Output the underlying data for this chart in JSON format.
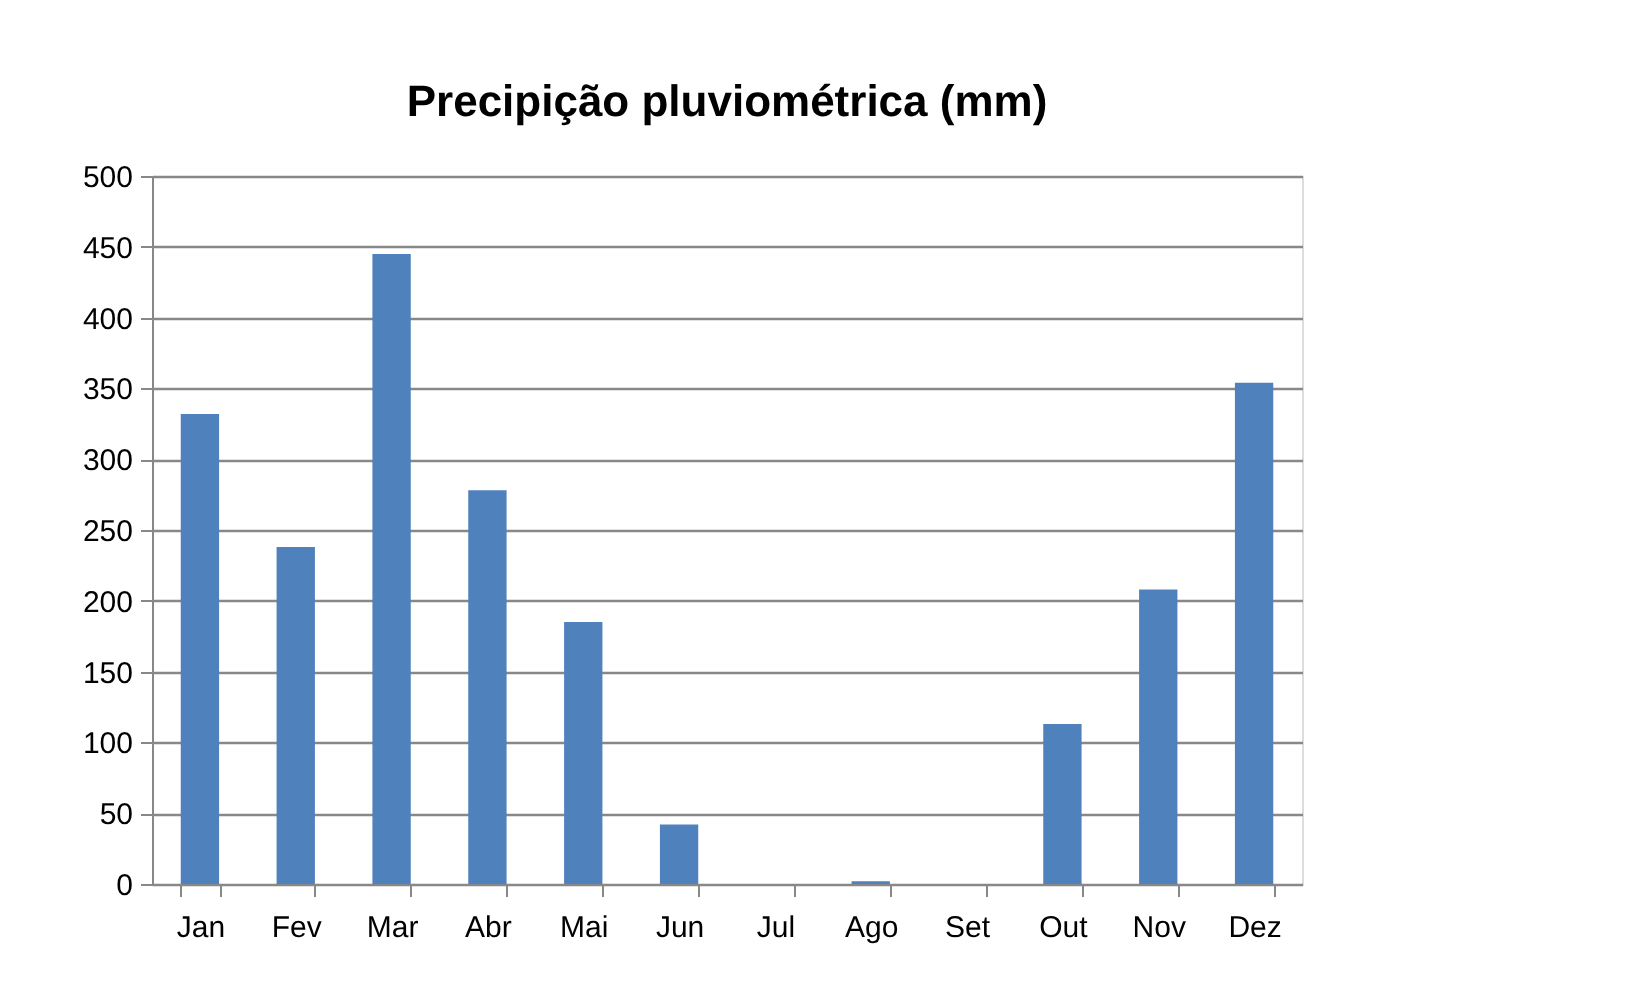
{
  "chart_data": {
    "type": "bar",
    "title": "Precipição pluviométrica (mm)",
    "categories": [
      "Jan",
      "Fev",
      "Mar",
      "Abr",
      "Mai",
      "Jun",
      "Jul",
      "Ago",
      "Set",
      "Out",
      "Nov",
      "Dez"
    ],
    "values": [
      332,
      238,
      445,
      278,
      185,
      42,
      0,
      2,
      0,
      113,
      208,
      354
    ],
    "color": "#4f81bd",
    "ylim": [
      0,
      500
    ],
    "yticks": [
      0,
      50,
      100,
      150,
      200,
      250,
      300,
      350,
      400,
      450,
      500
    ],
    "grid": "y"
  }
}
